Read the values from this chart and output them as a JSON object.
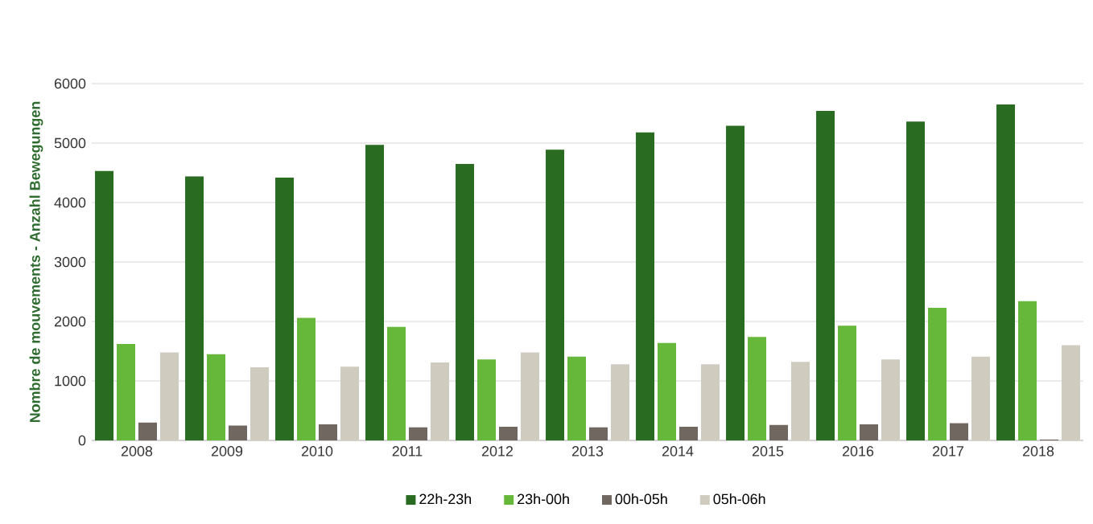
{
  "chart_data": {
    "type": "bar",
    "ylabel": "Nombre de mouvements - Anzahl Bewegungen",
    "categories": [
      "2008",
      "2009",
      "2010",
      "2011",
      "2012",
      "2013",
      "2014",
      "2015",
      "2016",
      "2017",
      "2018"
    ],
    "series": [
      {
        "name": "22h-23h",
        "color": "#2a6b22",
        "values": [
          4530,
          4440,
          4420,
          4970,
          4650,
          4890,
          5180,
          5290,
          5540,
          5360,
          5650
        ]
      },
      {
        "name": "23h-00h",
        "color": "#66b83a",
        "values": [
          1620,
          1450,
          2060,
          1910,
          1360,
          1410,
          1640,
          1740,
          1930,
          2230,
          2340
        ]
      },
      {
        "name": "00h-05h",
        "color": "#6f6760",
        "values": [
          300,
          250,
          270,
          220,
          230,
          220,
          230,
          260,
          270,
          290,
          15
        ]
      },
      {
        "name": "05h-06h",
        "color": "#d0cbbf",
        "values": [
          1480,
          1230,
          1240,
          1310,
          1480,
          1280,
          1280,
          1320,
          1360,
          1410,
          1600
        ]
      }
    ],
    "ylim": [
      0,
      6000
    ],
    "yticks": [
      0,
      1000,
      2000,
      3000,
      4000,
      5000,
      6000
    ],
    "grid": "y",
    "legend": "bottom"
  }
}
